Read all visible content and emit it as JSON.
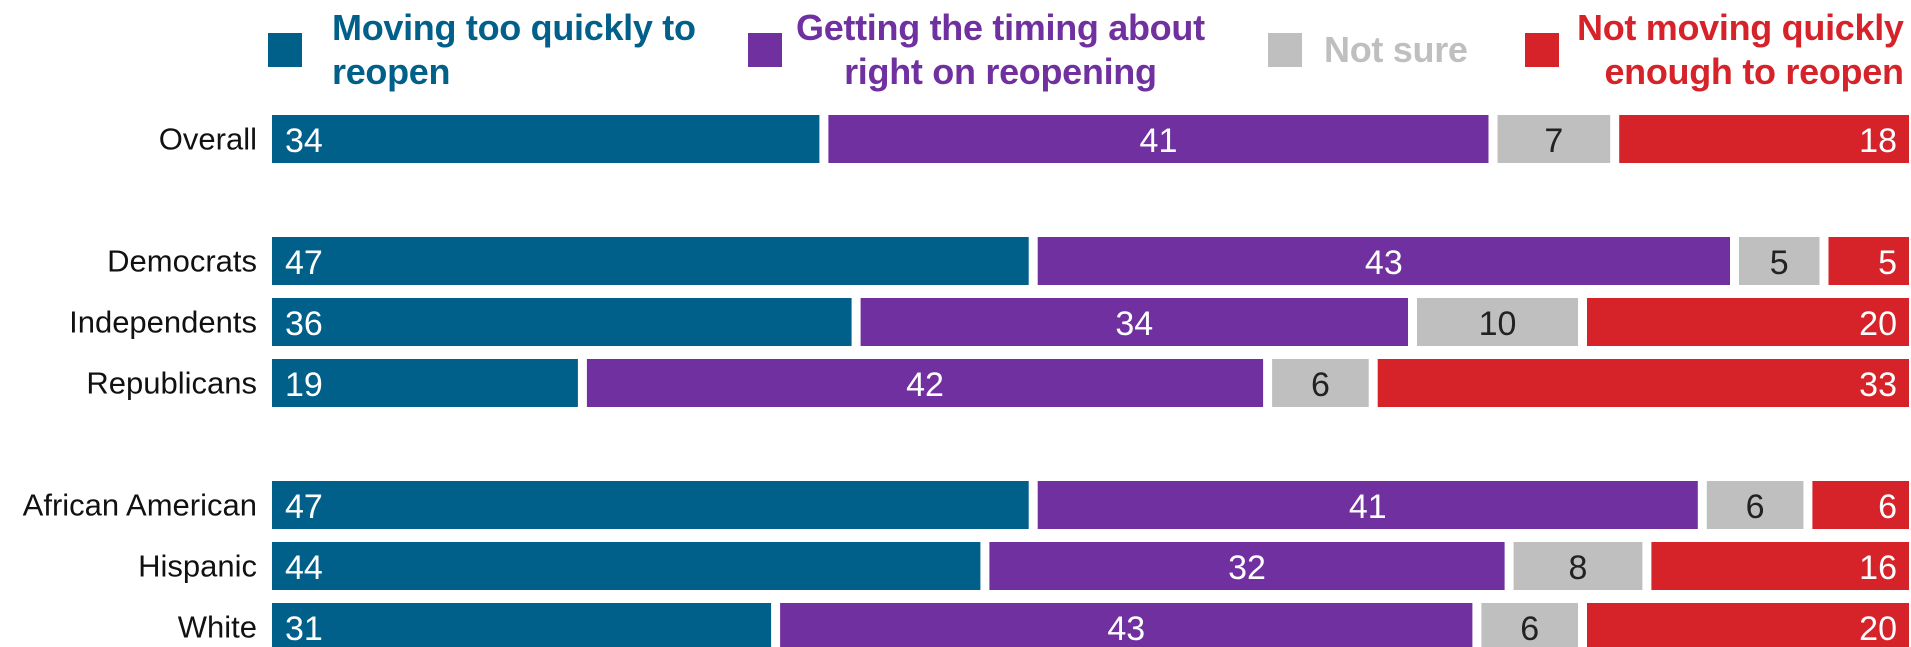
{
  "chart_data": {
    "type": "bar",
    "orientation": "horizontal",
    "stacked": true,
    "normalized_percent": true,
    "xlim": [
      0,
      100
    ],
    "legend": "top",
    "grid": false,
    "categories": [
      "Overall",
      "Democrats",
      "Independents",
      "Republicans",
      "African American",
      "Hispanic",
      "White"
    ],
    "groups": [
      [
        "Overall"
      ],
      [
        "Democrats",
        "Independents",
        "Republicans"
      ],
      [
        "African American",
        "Hispanic",
        "White"
      ]
    ],
    "series": [
      {
        "name": "Moving too quickly to\nreopen",
        "color": "#00608a",
        "label_color": "#ffffff",
        "values": [
          34,
          47,
          36,
          19,
          47,
          44,
          31
        ]
      },
      {
        "name": "Getting the timing about\nright on reopening",
        "color": "#7030a0",
        "label_color": "#ffffff",
        "values": [
          41,
          43,
          34,
          42,
          41,
          32,
          43
        ]
      },
      {
        "name": "Not sure",
        "color": "#bfbfbf",
        "label_color": "#222222",
        "values": [
          7,
          5,
          10,
          6,
          6,
          8,
          6
        ]
      },
      {
        "name": "Not moving quickly\nenough to reopen",
        "color": "#d6232a",
        "label_color": "#ffffff",
        "values": [
          18,
          5,
          20,
          33,
          6,
          16,
          20
        ]
      }
    ]
  }
}
